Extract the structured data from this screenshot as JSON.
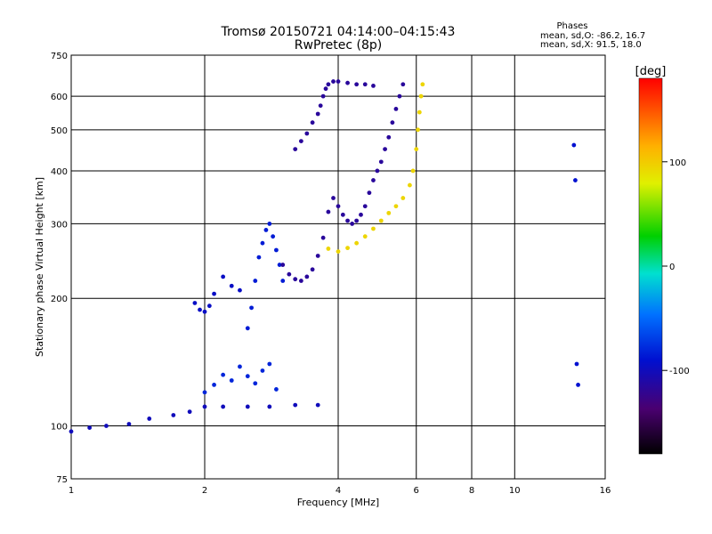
{
  "chart_data": {
    "type": "scatter",
    "title": "Tromsø 20150721 04:14:00–04:15:43",
    "subtitle": "RwPretec (8p)",
    "xlabel": "Frequency [MHz]",
    "ylabel": "Stationary phase Virtual Height [km]",
    "x_scale": "log",
    "y_scale": "log",
    "xlim": [
      1,
      16
    ],
    "ylim": [
      75,
      750
    ],
    "grid": true,
    "x_ticks": [
      "1",
      "2",
      "4",
      "6",
      "8",
      "10",
      "16"
    ],
    "y_ticks": [
      "75",
      "100",
      "200",
      "300",
      "400",
      "500",
      "600",
      "750"
    ],
    "phase_box": {
      "title": "Phases",
      "line_o": "mean, sd,O: -86.2, 16.7",
      "line_x": "mean, sd,X:  91.5, 18.0"
    },
    "colorbar": {
      "title": "[deg]",
      "range": [
        -180,
        180
      ],
      "ticks": [
        "100",
        "0",
        "-100"
      ],
      "tick_values": [
        100,
        0,
        -100
      ]
    },
    "traces": [
      {
        "phase": -100,
        "points": [
          [
            1.0,
            97
          ],
          [
            1.1,
            99
          ],
          [
            1.2,
            100
          ],
          [
            1.35,
            101
          ],
          [
            1.5,
            104
          ],
          [
            1.7,
            106
          ],
          [
            1.85,
            108
          ],
          [
            2.0,
            111
          ],
          [
            2.2,
            111
          ],
          [
            2.5,
            111
          ],
          [
            2.8,
            111
          ],
          [
            3.2,
            112
          ],
          [
            3.6,
            112
          ]
        ]
      },
      {
        "phase": -80,
        "points": [
          [
            2.0,
            120
          ],
          [
            2.1,
            125
          ],
          [
            2.2,
            132
          ],
          [
            2.3,
            128
          ],
          [
            2.4,
            138
          ],
          [
            2.5,
            131
          ],
          [
            2.6,
            126
          ],
          [
            2.7,
            135
          ],
          [
            2.8,
            140
          ],
          [
            2.9,
            122
          ]
        ]
      },
      {
        "phase": -95,
        "points": [
          [
            1.9,
            195
          ],
          [
            1.95,
            188
          ],
          [
            2.0,
            186
          ],
          [
            2.05,
            192
          ],
          [
            2.1,
            205
          ],
          [
            2.2,
            225
          ],
          [
            2.3,
            214
          ],
          [
            2.4,
            209
          ]
        ]
      },
      {
        "phase": -85,
        "points": [
          [
            2.5,
            170
          ],
          [
            2.55,
            190
          ],
          [
            2.6,
            220
          ],
          [
            2.65,
            250
          ],
          [
            2.7,
            270
          ],
          [
            2.75,
            290
          ],
          [
            2.8,
            300
          ],
          [
            2.85,
            280
          ],
          [
            2.9,
            260
          ],
          [
            2.95,
            240
          ],
          [
            3.0,
            220
          ]
        ]
      },
      {
        "phase": -115,
        "points": [
          [
            3.0,
            240
          ],
          [
            3.1,
            228
          ],
          [
            3.2,
            222
          ],
          [
            3.3,
            220
          ],
          [
            3.4,
            225
          ],
          [
            3.5,
            234
          ],
          [
            3.6,
            252
          ],
          [
            3.7,
            278
          ],
          [
            3.8,
            320
          ],
          [
            3.9,
            345
          ],
          [
            4.0,
            330
          ],
          [
            4.1,
            315
          ],
          [
            4.2,
            305
          ],
          [
            4.3,
            300
          ],
          [
            4.4,
            305
          ],
          [
            4.5,
            315
          ],
          [
            4.6,
            330
          ],
          [
            4.7,
            355
          ],
          [
            4.8,
            380
          ],
          [
            4.9,
            400
          ],
          [
            5.0,
            420
          ],
          [
            5.1,
            450
          ],
          [
            5.2,
            480
          ],
          [
            5.3,
            520
          ],
          [
            5.4,
            560
          ],
          [
            5.5,
            600
          ],
          [
            5.6,
            640
          ]
        ]
      },
      {
        "phase": -115,
        "points": [
          [
            3.2,
            450
          ],
          [
            3.3,
            470
          ],
          [
            3.4,
            490
          ],
          [
            3.5,
            520
          ],
          [
            3.6,
            545
          ],
          [
            3.65,
            570
          ],
          [
            3.7,
            600
          ],
          [
            3.75,
            625
          ],
          [
            3.8,
            640
          ],
          [
            3.9,
            650
          ],
          [
            4.0,
            650
          ],
          [
            4.2,
            645
          ],
          [
            4.4,
            640
          ],
          [
            4.6,
            640
          ],
          [
            4.8,
            635
          ]
        ]
      },
      {
        "phase": 95,
        "points": [
          [
            3.8,
            262
          ],
          [
            4.0,
            258
          ],
          [
            4.2,
            263
          ],
          [
            4.4,
            270
          ],
          [
            4.6,
            280
          ],
          [
            4.8,
            292
          ],
          [
            5.0,
            305
          ],
          [
            5.2,
            318
          ],
          [
            5.4,
            330
          ],
          [
            5.6,
            345
          ],
          [
            5.8,
            370
          ],
          [
            5.9,
            400
          ],
          [
            6.0,
            450
          ],
          [
            6.05,
            500
          ],
          [
            6.1,
            550
          ],
          [
            6.15,
            600
          ],
          [
            6.2,
            640
          ]
        ]
      },
      {
        "phase": -90,
        "points": [
          [
            13.6,
            460
          ],
          [
            13.7,
            380
          ],
          [
            13.8,
            140
          ],
          [
            13.9,
            125
          ]
        ]
      }
    ]
  }
}
